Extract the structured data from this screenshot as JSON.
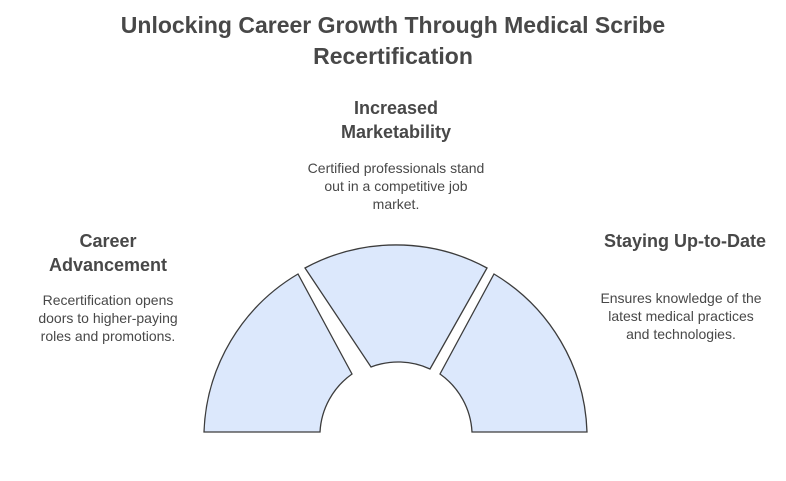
{
  "title": "Unlocking Career Growth Through Medical Scribe Recertification",
  "segments": [
    {
      "heading": "Career Advancement",
      "description": "Recertification opens doors to higher-paying roles and promotions."
    },
    {
      "heading": "Increased Marketability",
      "description": "Certified professionals stand out in a competitive job market."
    },
    {
      "heading": "Staying Up-to-Date",
      "description": "Ensures knowledge of the latest medical practices and technologies."
    }
  ],
  "colors": {
    "segment_fill": "#dce8fc",
    "segment_stroke": "#3c3c3c",
    "text": "#484848"
  }
}
